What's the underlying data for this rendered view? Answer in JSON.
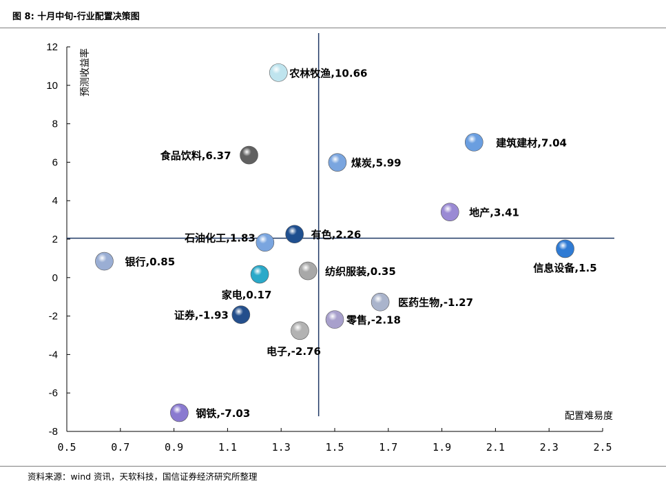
{
  "header": {
    "title": "图 8:  十月中旬-行业配置决策图"
  },
  "footer": {
    "source": "资料来源：wind 资讯，天软科技，国信证券经济研究所整理"
  },
  "chart_data": {
    "type": "scatter",
    "xlabel": "配置难易度",
    "ylabel": "预测收益率",
    "xlim": [
      0.5,
      2.5
    ],
    "ylim": [
      -8,
      12
    ],
    "x_ticks": [
      "0.5",
      "0.7",
      "0.9",
      "1.1",
      "1.3",
      "1.5",
      "1.7",
      "1.9",
      "2.1",
      "2.3",
      "2.5"
    ],
    "y_ticks": [
      "12",
      "10",
      "8",
      "6",
      "4",
      "2",
      "0",
      "-2",
      "-4",
      "-6",
      "-8"
    ],
    "points": [
      {
        "label": "农林牧渔,10.66",
        "x": 1.29,
        "y": 10.66,
        "color": "#bfe4ee"
      },
      {
        "label": "建筑建材,7.04",
        "x": 2.02,
        "y": 7.04,
        "color": "#6a9ee0"
      },
      {
        "label": "食品饮料,6.37",
        "x": 1.18,
        "y": 6.37,
        "color": "#606060"
      },
      {
        "label": "煤炭,5.99",
        "x": 1.51,
        "y": 5.99,
        "color": "#7aa5df"
      },
      {
        "label": "地产,3.41",
        "x": 1.93,
        "y": 3.41,
        "color": "#9a8ad4"
      },
      {
        "label": "有色,2.26",
        "x": 1.35,
        "y": 2.26,
        "color": "#1f4f8f"
      },
      {
        "label": "石油化工,1.83",
        "x": 1.24,
        "y": 1.83,
        "color": "#7aa5df"
      },
      {
        "label": "信息设备,1.5",
        "x": 2.36,
        "y": 1.5,
        "color": "#2f7bd4"
      },
      {
        "label": "银行,0.85",
        "x": 0.64,
        "y": 0.85,
        "color": "#9aaed4"
      },
      {
        "label": "纺织服装,0.35",
        "x": 1.4,
        "y": 0.35,
        "color": "#a8a8a8"
      },
      {
        "label": "家电,0.17",
        "x": 1.22,
        "y": 0.17,
        "color": "#2aa9c9"
      },
      {
        "label": "医药生物,-1.27",
        "x": 1.67,
        "y": -1.27,
        "color": "#aab4cc"
      },
      {
        "label": "证券,-1.93",
        "x": 1.15,
        "y": -1.93,
        "color": "#244f8c"
      },
      {
        "label": "零售,-2.18",
        "x": 1.5,
        "y": -2.18,
        "color": "#a8a0cc"
      },
      {
        "label": "电子,-2.76",
        "x": 1.37,
        "y": -2.76,
        "color": "#b2b2b2"
      },
      {
        "label": "钢铁,-7.03",
        "x": 0.92,
        "y": -7.03,
        "color": "#8a7ad0"
      }
    ],
    "reference_lines": {
      "x": 1.44,
      "y": 2.05
    }
  }
}
